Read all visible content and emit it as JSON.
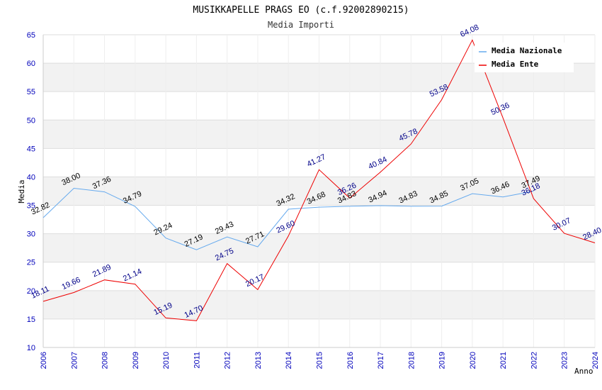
{
  "chart_data": {
    "type": "line",
    "title": "MUSIKKAPELLE PRAGS EO (c.f.92002890215)",
    "subtitle": "Media Importi",
    "xlabel": "Anno",
    "ylabel": "Media",
    "ylim": [
      10,
      65
    ],
    "yticks": [
      "10",
      "15",
      "20",
      "25",
      "30",
      "35",
      "40",
      "45",
      "50",
      "55",
      "60",
      "65"
    ],
    "categories": [
      "2006",
      "2007",
      "2008",
      "2009",
      "2010",
      "2011",
      "2012",
      "2013",
      "2014",
      "2015",
      "2016",
      "2017",
      "2018",
      "2019",
      "2020",
      "2021",
      "2022",
      "2023",
      "2024"
    ],
    "grid": true,
    "legend_position": "top-right",
    "series": [
      {
        "name": "Media Nazionale",
        "color": "#66aaee",
        "label_color": "#000000",
        "values": [
          32.82,
          38.0,
          37.36,
          34.79,
          29.24,
          27.19,
          29.43,
          27.71,
          34.32,
          34.68,
          34.83,
          34.94,
          34.83,
          34.85,
          37.05,
          36.46,
          37.49,
          null,
          null
        ],
        "labels": [
          "32.82",
          "38.00",
          "37.36",
          "34.79",
          "29.24",
          "27.19",
          "29.43",
          "27.71",
          "34.32",
          "34.68",
          "34.83",
          "34.94",
          "34.83",
          "34.85",
          "37.05",
          "36.46",
          "37.49",
          "",
          ""
        ]
      },
      {
        "name": "Media Ente",
        "color": "#ee0000",
        "label_color": "#000088",
        "values": [
          18.11,
          19.66,
          21.89,
          21.14,
          15.19,
          14.7,
          24.75,
          20.17,
          29.6,
          41.27,
          36.26,
          40.84,
          45.78,
          53.58,
          64.08,
          50.36,
          36.18,
          30.07,
          28.4
        ],
        "labels": [
          "18.11",
          "19.66",
          "21.89",
          "21.14",
          "15.19",
          "14.70",
          "24.75",
          "20.17",
          "29.60",
          "41.27",
          "36.26",
          "40.84",
          "45.78",
          "53.58",
          "64.08",
          "50.36",
          "36.18",
          "30.07",
          "28.40"
        ]
      }
    ]
  }
}
